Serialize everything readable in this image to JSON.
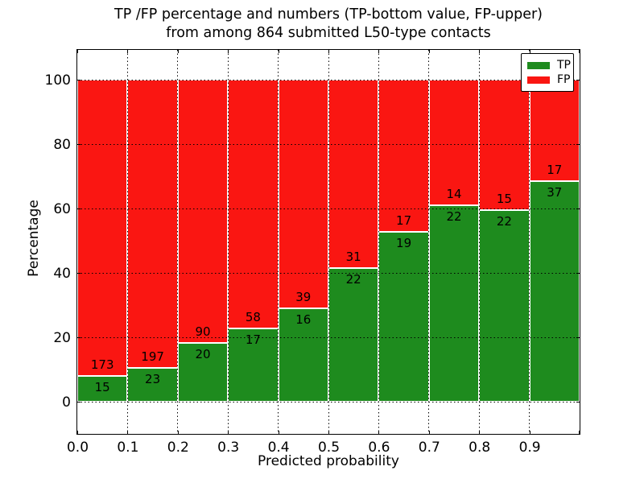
{
  "chart_data": {
    "type": "bar",
    "stacked": true,
    "normalized_to_percent": true,
    "title_line1": "TP /FP percentage and numbers (TP-bottom value, FP-upper)",
    "title_line2": "from among 864 submitted L50-type contacts",
    "xlabel": "Predicted probability",
    "ylabel": "Percentage",
    "total_contacts": "864",
    "categories": [
      0.0,
      0.1,
      0.2,
      0.3,
      0.4,
      0.5,
      0.6,
      0.7,
      0.8,
      0.9
    ],
    "bin_width": 0.1,
    "x_tick_labels": [
      "0.0",
      "0.1",
      "0.2",
      "0.3",
      "0.4",
      "0.5",
      "0.6",
      "0.7",
      "0.8",
      "0.9"
    ],
    "y_ticks": [
      0,
      20,
      40,
      60,
      80,
      100
    ],
    "y_tick_labels": [
      "0",
      "20",
      "40",
      "60",
      "80",
      "100"
    ],
    "xlim": [
      0.0,
      1.0
    ],
    "ylim": [
      -10,
      109.25
    ],
    "grid": true,
    "grid_style": "dotted-black",
    "legend_position": "upper right",
    "series": [
      {
        "name": "TP",
        "color": "#1e8b1e",
        "counts": [
          15,
          23,
          20,
          17,
          16,
          22,
          19,
          22,
          22,
          37
        ]
      },
      {
        "name": "FP",
        "color": "#fa1612",
        "counts": [
          173,
          197,
          90,
          58,
          39,
          31,
          17,
          14,
          15,
          17
        ]
      }
    ],
    "tp_percent_of_bin": [
      7.98,
      10.45,
      18.18,
      22.67,
      29.09,
      41.51,
      52.78,
      61.11,
      59.46,
      68.52
    ],
    "bar_label_note": "TP count printed inside green segment below boundary, FP count inside red segment above boundary"
  }
}
